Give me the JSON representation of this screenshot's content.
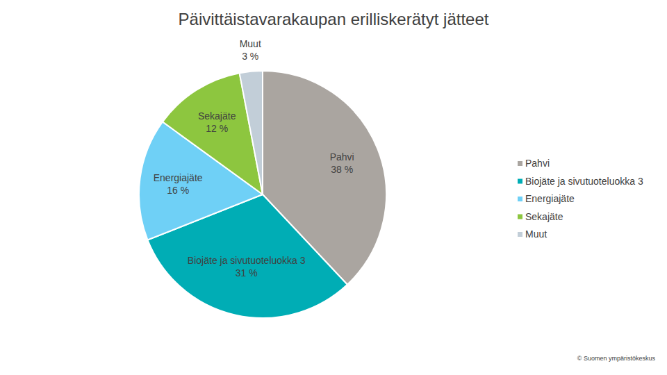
{
  "chart_data": {
    "type": "pie",
    "title": "Päivittäistavarakaupan erilliskerätyt jätteet",
    "categories": [
      "Pahvi",
      "Biojäte ja sivutuoteluokka 3",
      "Energiajäte",
      "Sekajäte",
      "Muut"
    ],
    "values": [
      38,
      31,
      16,
      12,
      3
    ],
    "value_labels": [
      "38 %",
      "31 %",
      "16 %",
      "12 %",
      "3 %"
    ],
    "colors": [
      "#aaa5a0",
      "#00adb5",
      "#6fd0f6",
      "#8dc63f",
      "#c2ced8"
    ],
    "data_labels": true,
    "legend": "right",
    "source": "© Suomen ympäristökeskus"
  }
}
